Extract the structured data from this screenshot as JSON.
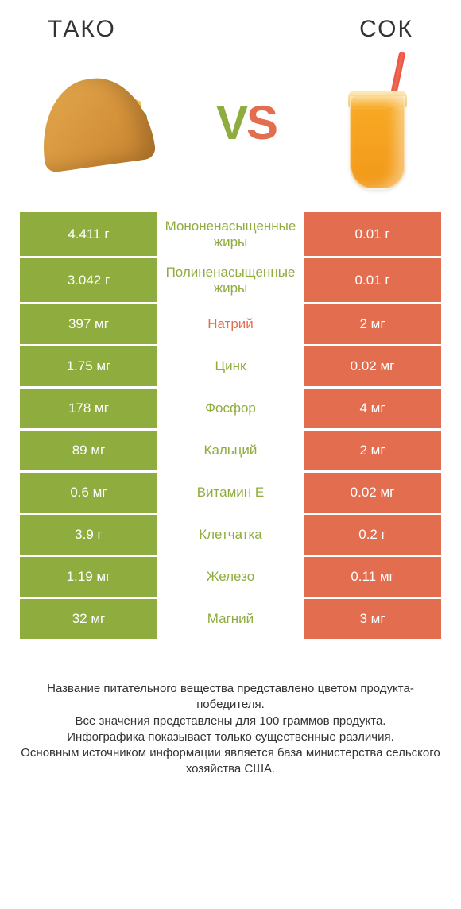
{
  "header": {
    "left_title": "ТАКО",
    "right_title": "СОК"
  },
  "vs": {
    "v": "V",
    "s": "S"
  },
  "colors": {
    "left_winner": "#8fad3f",
    "right_winner": "#e36d4f",
    "background": "#ffffff",
    "text": "#333333"
  },
  "typography": {
    "header_fontsize": 30,
    "vs_fontsize": 60,
    "cell_fontsize": 17,
    "mid_fontsize": 16,
    "footnote_fontsize": 15
  },
  "table": {
    "type": "table",
    "columns": [
      "left_value",
      "nutrient",
      "right_value"
    ],
    "rows": [
      {
        "left": "4.411 г",
        "mid": "Мононенасыщенные жиры",
        "right": "0.01 г",
        "winner": "left"
      },
      {
        "left": "3.042 г",
        "mid": "Полиненасыщенные жиры",
        "right": "0.01 г",
        "winner": "left"
      },
      {
        "left": "397 мг",
        "mid": "Натрий",
        "right": "2 мг",
        "winner": "right"
      },
      {
        "left": "1.75 мг",
        "mid": "Цинк",
        "right": "0.02 мг",
        "winner": "left"
      },
      {
        "left": "178 мг",
        "mid": "Фосфор",
        "right": "4 мг",
        "winner": "left"
      },
      {
        "left": "89 мг",
        "mid": "Кальций",
        "right": "2 мг",
        "winner": "left"
      },
      {
        "left": "0.6 мг",
        "mid": "Витамин E",
        "right": "0.02 мг",
        "winner": "left"
      },
      {
        "left": "3.9 г",
        "mid": "Клетчатка",
        "right": "0.2 г",
        "winner": "left"
      },
      {
        "left": "1.19 мг",
        "mid": "Железо",
        "right": "0.11 мг",
        "winner": "left"
      },
      {
        "left": "32 мг",
        "mid": "Магний",
        "right": "3 мг",
        "winner": "left"
      }
    ]
  },
  "footnote": {
    "line1": "Название питательного вещества представлено цветом продукта-победителя.",
    "line2": "Все значения представлены для 100 граммов продукта.",
    "line3": "Инфографика показывает только существенные различия.",
    "line4": "Основным источником информации является база министерства сельского хозяйства США."
  }
}
